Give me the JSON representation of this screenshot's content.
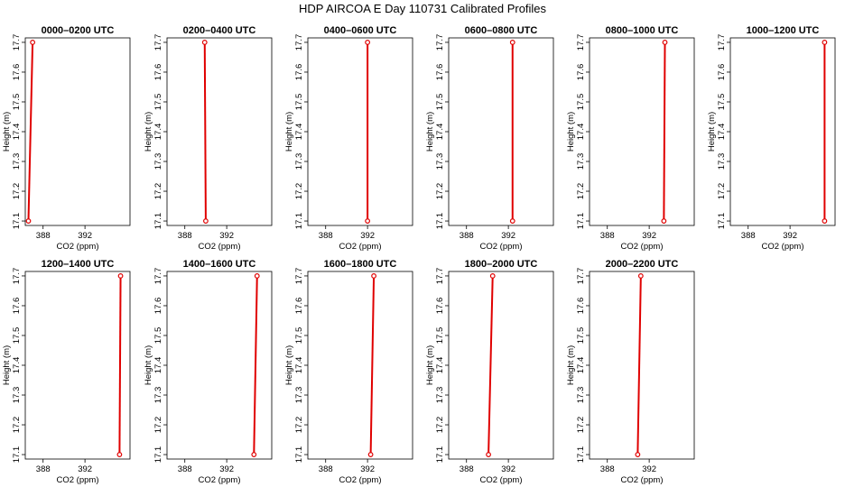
{
  "title": "HDP AIRCOA E  Day 110731  Calibrated Profiles",
  "chart_data": {
    "type": "line",
    "title": "HDP AIRCOA E  Day 110731  Calibrated Profiles",
    "xlabel": "CO2 (ppm)",
    "ylabel": "Height (m)",
    "xlim": [
      386.3,
      396.3
    ],
    "ylim": [
      17.085,
      17.715
    ],
    "x_ticks": [
      388,
      392
    ],
    "x_tick_labels": [
      "388",
      "392"
    ],
    "y_ticks": [
      17.1,
      17.2,
      17.3,
      17.4,
      17.5,
      17.6,
      17.7
    ],
    "y_tick_labels": [
      "17.1",
      "17.2",
      "17.3",
      "17.4",
      "17.5",
      "17.6",
      "17.7"
    ],
    "line_color": "#e00000",
    "marker": "open-circle",
    "grid": false,
    "panels": [
      {
        "title": "0000–0200 UTC",
        "x": [
          386.6,
          387.0
        ],
        "y": [
          17.1,
          17.7
        ]
      },
      {
        "title": "0200–0400 UTC",
        "x": [
          390.0,
          389.9
        ],
        "y": [
          17.1,
          17.7
        ]
      },
      {
        "title": "0400–0600 UTC",
        "x": [
          392.0,
          392.0
        ],
        "y": [
          17.1,
          17.7
        ]
      },
      {
        "title": "0600–0800 UTC",
        "x": [
          392.4,
          392.4
        ],
        "y": [
          17.1,
          17.7
        ]
      },
      {
        "title": "0800–1000 UTC",
        "x": [
          393.4,
          393.5
        ],
        "y": [
          17.1,
          17.7
        ]
      },
      {
        "title": "1000–1200 UTC",
        "x": [
          395.3,
          395.3
        ],
        "y": [
          17.1,
          17.7
        ]
      },
      {
        "title": "1200–1400 UTC",
        "x": [
          395.3,
          395.4
        ],
        "y": [
          17.1,
          17.7
        ]
      },
      {
        "title": "1400–1600 UTC",
        "x": [
          394.6,
          394.9
        ],
        "y": [
          17.1,
          17.7
        ]
      },
      {
        "title": "1600–1800 UTC",
        "x": [
          392.3,
          392.6
        ],
        "y": [
          17.1,
          17.7
        ]
      },
      {
        "title": "1800–2000 UTC",
        "x": [
          390.1,
          390.5
        ],
        "y": [
          17.1,
          17.7
        ]
      },
      {
        "title": "2000–2200 UTC",
        "x": [
          390.9,
          391.2
        ],
        "y": [
          17.1,
          17.7
        ]
      }
    ]
  }
}
